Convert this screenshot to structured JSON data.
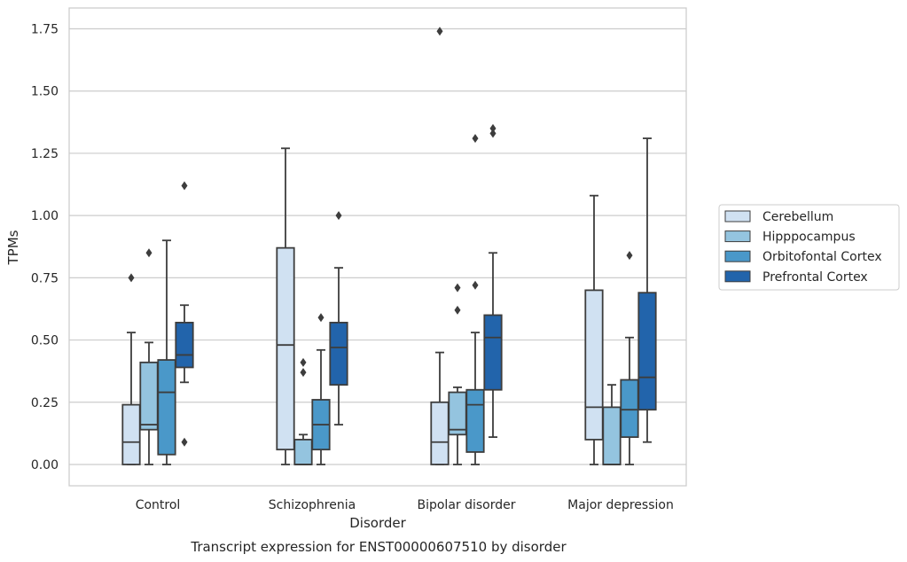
{
  "chart_data": {
    "type": "box",
    "title": "",
    "caption": "Transcript expression for ENST00000607510 by disorder",
    "xlabel": "Disorder",
    "ylabel": "TPMs",
    "ylim": [
      -0.085,
      1.83
    ],
    "yticks": [
      "0.00",
      "0.25",
      "0.50",
      "0.75",
      "1.00",
      "1.25",
      "1.50",
      "1.75"
    ],
    "ytick_values": [
      0,
      0.25,
      0.5,
      0.75,
      1.0,
      1.25,
      1.5,
      1.75
    ],
    "grid": true,
    "legend_position": "right",
    "categories": [
      "Control",
      "Schizophrenia",
      "Bipolar disorder",
      "Major depression"
    ],
    "series": [
      {
        "name": "Cerebellum",
        "color": "#d0e1f2",
        "boxes": [
          {
            "q1": 0.0,
            "median": 0.09,
            "q3": 0.24,
            "whisker_low": 0.0,
            "whisker_high": 0.53,
            "outliers": [
              0.75
            ]
          },
          {
            "q1": 0.06,
            "median": 0.48,
            "q3": 0.87,
            "whisker_low": 0.0,
            "whisker_high": 1.27,
            "outliers": []
          },
          {
            "q1": 0.0,
            "median": 0.09,
            "q3": 0.25,
            "whisker_low": 0.0,
            "whisker_high": 0.45,
            "outliers": [
              1.74
            ]
          },
          {
            "q1": 0.1,
            "median": 0.23,
            "q3": 0.7,
            "whisker_low": 0.0,
            "whisker_high": 1.08,
            "outliers": []
          }
        ]
      },
      {
        "name": "Hipppocampus",
        "color": "#94c4df",
        "boxes": [
          {
            "q1": 0.14,
            "median": 0.16,
            "q3": 0.41,
            "whisker_low": 0.0,
            "whisker_high": 0.49,
            "outliers": [
              0.85
            ]
          },
          {
            "q1": 0.0,
            "median": 0.0,
            "q3": 0.1,
            "whisker_low": 0.0,
            "whisker_high": 0.12,
            "outliers": [
              0.37,
              0.41
            ]
          },
          {
            "q1": 0.12,
            "median": 0.14,
            "q3": 0.29,
            "whisker_low": 0.0,
            "whisker_high": 0.31,
            "outliers": [
              0.62,
              0.71
            ]
          },
          {
            "q1": 0.0,
            "median": 0.0,
            "q3": 0.23,
            "whisker_low": 0.0,
            "whisker_high": 0.32,
            "outliers": []
          }
        ]
      },
      {
        "name": "Orbitofontal Cortex",
        "color": "#4a98c9",
        "boxes": [
          {
            "q1": 0.04,
            "median": 0.29,
            "q3": 0.42,
            "whisker_low": 0.0,
            "whisker_high": 0.9,
            "outliers": []
          },
          {
            "q1": 0.06,
            "median": 0.16,
            "q3": 0.26,
            "whisker_low": 0.0,
            "whisker_high": 0.46,
            "outliers": [
              0.59
            ]
          },
          {
            "q1": 0.05,
            "median": 0.24,
            "q3": 0.3,
            "whisker_low": 0.0,
            "whisker_high": 0.53,
            "outliers": [
              0.72,
              1.31
            ]
          },
          {
            "q1": 0.11,
            "median": 0.22,
            "q3": 0.34,
            "whisker_low": 0.0,
            "whisker_high": 0.51,
            "outliers": [
              0.84
            ]
          }
        ]
      },
      {
        "name": "Prefrontal Cortex",
        "color": "#2264ab",
        "boxes": [
          {
            "q1": 0.39,
            "median": 0.44,
            "q3": 0.57,
            "whisker_low": 0.33,
            "whisker_high": 0.64,
            "outliers": [
              0.09,
              1.12
            ]
          },
          {
            "q1": 0.32,
            "median": 0.47,
            "q3": 0.57,
            "whisker_low": 0.16,
            "whisker_high": 0.79,
            "outliers": [
              1.0
            ]
          },
          {
            "q1": 0.3,
            "median": 0.51,
            "q3": 0.6,
            "whisker_low": 0.11,
            "whisker_high": 0.85,
            "outliers": [
              1.33,
              1.35
            ]
          },
          {
            "q1": 0.22,
            "median": 0.35,
            "q3": 0.69,
            "whisker_low": 0.09,
            "whisker_high": 1.31,
            "outliers": []
          }
        ]
      }
    ]
  },
  "colors": {
    "grid": "#cccccc",
    "frame": "#cccccc",
    "box_edge": "#3d3d3d"
  }
}
